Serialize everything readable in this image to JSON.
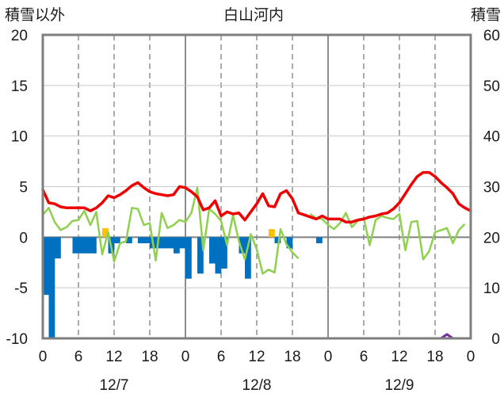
{
  "chart_data": {
    "type": "line",
    "title": "白山河内",
    "left_axis_label": "積雪以外",
    "right_axis_label": "積雪",
    "left_ylim": [
      -10,
      20
    ],
    "left_yticks": [
      20,
      15,
      10,
      5,
      0,
      -5,
      -10
    ],
    "right_ylim": [
      0,
      60
    ],
    "right_yticks": [
      60,
      50,
      40,
      30,
      20,
      10,
      0
    ],
    "x_tick_labels": [
      "0",
      "6",
      "12",
      "18",
      "0",
      "6",
      "12",
      "18",
      "0",
      "6",
      "12",
      "18",
      "0"
    ],
    "date_labels": [
      {
        "label": "12/7",
        "hour": 12
      },
      {
        "label": "12/8",
        "hour": 36
      },
      {
        "label": "12/9",
        "hour": 60
      }
    ],
    "x_range": [
      0,
      72
    ],
    "grid": true,
    "colors": {
      "temperature": "#ee0000",
      "wind": "#8fd14f",
      "precip_negative": "#0070c0",
      "precip_positive": "#ffc000",
      "snow_depth": "#7030a0"
    },
    "temperature": [
      4.7,
      3.4,
      3.3,
      3.0,
      2.9,
      2.9,
      2.9,
      2.9,
      2.6,
      2.9,
      3.4,
      4.1,
      3.9,
      4.2,
      4.6,
      5.1,
      5.4,
      4.9,
      4.5,
      4.3,
      4.2,
      4.1,
      4.2,
      5.0,
      4.9,
      4.5,
      4.0,
      2.7,
      2.9,
      3.6,
      2.1,
      2.5,
      2.3,
      2.4,
      1.7,
      2.5,
      3.3,
      4.3,
      3.1,
      3.0,
      4.3,
      4.6,
      3.8,
      2.4,
      2.2,
      2.0,
      1.8,
      2.1,
      1.8,
      1.8,
      1.8,
      1.5,
      1.5,
      1.7,
      1.8,
      2.0,
      2.1,
      2.3,
      2.4,
      2.8,
      3.4,
      4.3,
      5.2,
      6.0,
      6.4,
      6.4,
      6.0,
      5.4,
      4.9,
      4.3,
      3.3,
      2.9,
      2.6
    ],
    "wind": [
      2.2,
      2.9,
      1.5,
      0.7,
      1.0,
      1.6,
      1.7,
      2.6,
      1.2,
      2.5,
      -1.7,
      0.5,
      -2.4,
      -0.6,
      -0.4,
      2.9,
      2.8,
      1.2,
      1.4,
      -2.3,
      2.4,
      0.9,
      1.2,
      1.7,
      1.5,
      2.4,
      4.9,
      -1.3,
      2.8,
      2.3,
      1.6,
      -0.8,
      2.2,
      -0.4,
      -2.2,
      0.3,
      -1.2,
      -3.6,
      -3.2,
      -3.5,
      0.8,
      -0.7,
      -1.5,
      -2.1,
      null,
      2.3,
      1.9,
      1.8,
      1.2,
      0.8,
      1.4,
      2.4,
      1.0,
      1.6,
      1.9,
      -0.8,
      1.7,
      2.1,
      1.9,
      1.8,
      2.3,
      -1.3,
      1.5,
      1.6,
      -2.2,
      -1.4,
      0.5,
      0.7,
      0.9,
      -0.6,
      0.7,
      1.3
    ],
    "precip": [
      -5.7,
      -10.1,
      -2.1,
      0,
      0,
      -1.6,
      -1.6,
      -1.6,
      -1.6,
      0,
      0.9,
      -1.6,
      -0.6,
      0,
      -0.6,
      0,
      -0.6,
      -0.6,
      -1.1,
      -1.1,
      -1.1,
      -1.1,
      -1.6,
      -1.1,
      -4.1,
      0,
      -3.6,
      0,
      -2.6,
      -3.6,
      -3.1,
      0,
      0,
      -1.6,
      -4.1,
      0,
      0,
      0,
      0.8,
      -0.6,
      0,
      -1.1,
      0,
      0,
      0,
      0,
      -0.6,
      0,
      0,
      0,
      0,
      0,
      0,
      0,
      0,
      0,
      0,
      0,
      0,
      0,
      0,
      0,
      0,
      0,
      0,
      0,
      0,
      0,
      0,
      0,
      0,
      0
    ],
    "snow_depth": [
      0,
      0,
      0,
      0,
      0,
      0,
      0,
      0,
      0,
      0,
      0,
      0,
      0,
      0,
      0,
      0,
      0,
      0,
      0,
      0,
      0,
      0,
      0,
      0,
      0,
      0,
      0,
      0,
      0,
      0,
      0,
      0,
      0,
      0,
      0,
      0,
      0,
      0,
      0,
      0,
      0,
      0,
      0,
      0,
      0,
      0,
      0,
      0,
      0,
      0,
      0,
      0,
      0,
      0,
      0,
      0,
      0,
      0,
      0,
      0,
      0,
      0,
      0,
      0,
      0,
      0,
      0,
      0,
      0.8,
      0,
      0,
      0,
      0
    ]
  }
}
